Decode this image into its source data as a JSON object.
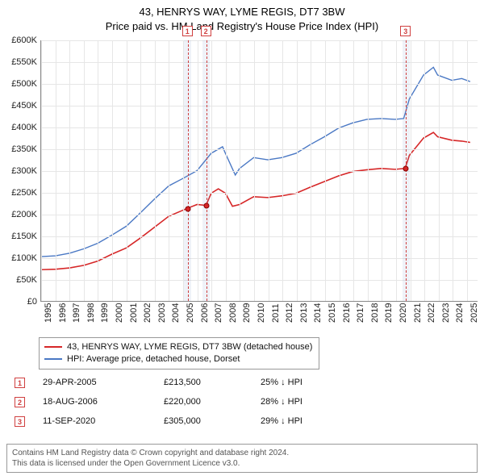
{
  "title_line1": "43, HENRYS WAY, LYME REGIS, DT7 3BW",
  "title_line2": "Price paid vs. HM Land Registry's House Price Index (HPI)",
  "chart": {
    "type": "line",
    "x_min": 1995,
    "x_max": 2025.8,
    "x_ticks": [
      1995,
      1996,
      1997,
      1998,
      1999,
      2000,
      2001,
      2002,
      2003,
      2004,
      2005,
      2006,
      2007,
      2008,
      2009,
      2010,
      2011,
      2012,
      2013,
      2014,
      2015,
      2016,
      2017,
      2018,
      2019,
      2020,
      2021,
      2022,
      2023,
      2024,
      2025
    ],
    "y_min": 0,
    "y_max": 600000,
    "y_ticks": [
      0,
      50000,
      100000,
      150000,
      200000,
      250000,
      300000,
      350000,
      400000,
      450000,
      500000,
      550000,
      600000
    ],
    "y_tick_labels": [
      "£0",
      "£50K",
      "£100K",
      "£150K",
      "£200K",
      "£250K",
      "£300K",
      "£350K",
      "£400K",
      "£450K",
      "£500K",
      "£550K",
      "£600K"
    ],
    "background_color": "#ffffff",
    "grid_color": "#e6e6e6",
    "series": [
      {
        "name": "price_paid",
        "label": "43, HENRYS WAY, LYME REGIS, DT7 3BW (detached house)",
        "color": "#d62728",
        "width": 1.6,
        "points": [
          [
            1995,
            72000
          ],
          [
            1996,
            73000
          ],
          [
            1997,
            76000
          ],
          [
            1998,
            82000
          ],
          [
            1999,
            92000
          ],
          [
            2000,
            108000
          ],
          [
            2001,
            122000
          ],
          [
            2002,
            145000
          ],
          [
            2003,
            170000
          ],
          [
            2004,
            195000
          ],
          [
            2005.33,
            213500
          ],
          [
            2006,
            222000
          ],
          [
            2006.63,
            220000
          ],
          [
            2007,
            248000
          ],
          [
            2007.5,
            258000
          ],
          [
            2008,
            248000
          ],
          [
            2008.5,
            218000
          ],
          [
            2009,
            222000
          ],
          [
            2010,
            240000
          ],
          [
            2011,
            238000
          ],
          [
            2012,
            242000
          ],
          [
            2013,
            248000
          ],
          [
            2014,
            262000
          ],
          [
            2015,
            275000
          ],
          [
            2016,
            288000
          ],
          [
            2017,
            298000
          ],
          [
            2018,
            302000
          ],
          [
            2019,
            305000
          ],
          [
            2020,
            303000
          ],
          [
            2020.7,
            305000
          ],
          [
            2021,
            335000
          ],
          [
            2022,
            375000
          ],
          [
            2022.7,
            388000
          ],
          [
            2023,
            378000
          ],
          [
            2024,
            370000
          ],
          [
            2024.7,
            368000
          ],
          [
            2025.3,
            365000
          ]
        ]
      },
      {
        "name": "hpi",
        "label": "HPI: Average price, detached house, Dorset",
        "color": "#4a78c4",
        "width": 1.4,
        "points": [
          [
            1995,
            102000
          ],
          [
            1996,
            104000
          ],
          [
            1997,
            110000
          ],
          [
            1998,
            120000
          ],
          [
            1999,
            133000
          ],
          [
            2000,
            152000
          ],
          [
            2001,
            172000
          ],
          [
            2002,
            203000
          ],
          [
            2003,
            235000
          ],
          [
            2004,
            265000
          ],
          [
            2005,
            282000
          ],
          [
            2006,
            300000
          ],
          [
            2007,
            340000
          ],
          [
            2007.8,
            355000
          ],
          [
            2008,
            340000
          ],
          [
            2008.7,
            290000
          ],
          [
            2009,
            305000
          ],
          [
            2010,
            330000
          ],
          [
            2011,
            325000
          ],
          [
            2012,
            330000
          ],
          [
            2013,
            340000
          ],
          [
            2014,
            360000
          ],
          [
            2015,
            378000
          ],
          [
            2016,
            398000
          ],
          [
            2017,
            410000
          ],
          [
            2018,
            418000
          ],
          [
            2019,
            420000
          ],
          [
            2020,
            418000
          ],
          [
            2020.6,
            420000
          ],
          [
            2021,
            465000
          ],
          [
            2022,
            520000
          ],
          [
            2022.7,
            538000
          ],
          [
            2023,
            520000
          ],
          [
            2024,
            508000
          ],
          [
            2024.7,
            512000
          ],
          [
            2025.3,
            505000
          ]
        ]
      }
    ],
    "markers": [
      {
        "x": 2005.33,
        "y": 213500
      },
      {
        "x": 2006.63,
        "y": 220000
      },
      {
        "x": 2020.7,
        "y": 305000
      }
    ],
    "vlines": [
      {
        "x": 2005.33,
        "label": "1",
        "band_width": 0.25
      },
      {
        "x": 2006.63,
        "label": "2",
        "band_width": 0.25
      },
      {
        "x": 2020.7,
        "label": "3",
        "band_width": 0.25
      }
    ],
    "dash_color": "#d04040"
  },
  "legend": {
    "items": [
      {
        "color": "#d62728",
        "label": "43, HENRYS WAY, LYME REGIS, DT7 3BW (detached house)"
      },
      {
        "color": "#4a78c4",
        "label": "HPI: Average price, detached house, Dorset"
      }
    ]
  },
  "events": [
    {
      "num": "1",
      "date": "29-APR-2005",
      "price": "£213,500",
      "diff": "25% ↓ HPI"
    },
    {
      "num": "2",
      "date": "18-AUG-2006",
      "price": "£220,000",
      "diff": "28% ↓ HPI"
    },
    {
      "num": "3",
      "date": "11-SEP-2020",
      "price": "£305,000",
      "diff": "29% ↓ HPI"
    }
  ],
  "footer_line1": "Contains HM Land Registry data © Crown copyright and database right 2024.",
  "footer_line2": "This data is licensed under the Open Government Licence v3.0."
}
